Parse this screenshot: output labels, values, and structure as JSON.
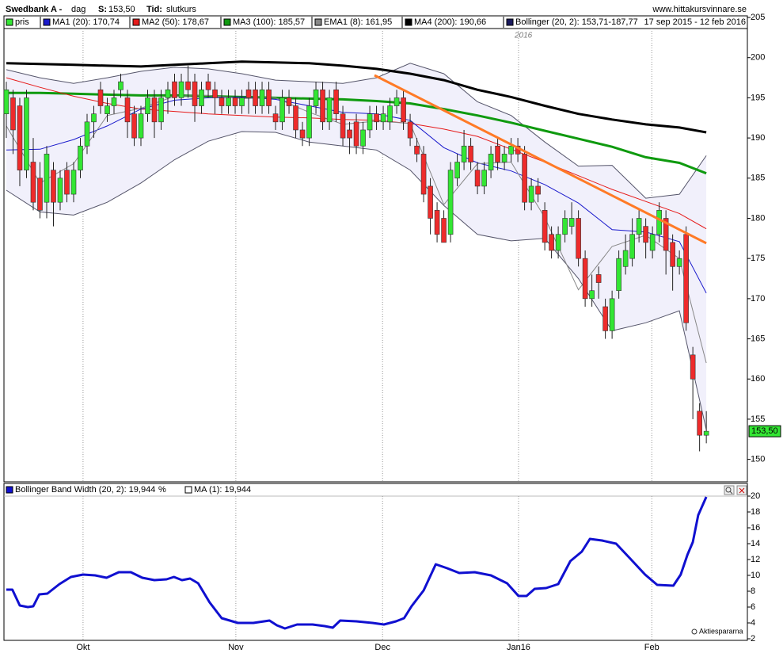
{
  "chart_data": [
    {
      "type": "candlestick",
      "title": "Swedbank A -",
      "period": "dag",
      "price_label": "S:",
      "price": "153,50",
      "time_label": "Tid:",
      "time_value": "slutkurs",
      "source": "www.hittakursvinnare.se",
      "date_range": "17 sep 2015 - 12 feb 2016",
      "annotation": "2016",
      "candles": {
        "name": "pris",
        "up_color": "#33e633",
        "down_color": "#ee2b2b",
        "ohlc": [
          [
            193,
            197,
            190,
            196
          ],
          [
            195,
            196,
            188,
            191
          ],
          [
            194,
            195,
            184,
            186
          ],
          [
            186,
            196,
            185,
            195
          ],
          [
            187,
            190,
            181,
            182
          ],
          [
            185,
            187,
            180,
            181
          ],
          [
            182,
            189,
            180,
            188
          ],
          [
            186,
            187,
            179,
            182
          ],
          [
            182,
            186,
            181,
            185
          ],
          [
            186,
            187,
            182,
            183
          ],
          [
            183,
            187,
            182,
            186
          ],
          [
            186,
            190,
            185,
            189
          ],
          [
            189,
            193,
            188,
            192
          ],
          [
            192,
            194,
            190,
            193
          ],
          [
            196,
            197,
            193,
            194
          ],
          [
            193,
            195,
            192,
            194
          ],
          [
            194,
            196,
            193,
            195
          ],
          [
            196,
            198,
            195,
            197
          ],
          [
            195,
            196,
            190,
            192
          ],
          [
            193,
            194,
            189,
            190
          ],
          [
            190,
            194,
            189,
            193
          ],
          [
            193,
            196,
            192,
            195
          ],
          [
            195,
            196,
            190,
            192
          ],
          [
            192,
            196,
            191,
            195
          ],
          [
            195,
            197,
            193,
            196
          ],
          [
            197,
            198,
            194,
            195
          ],
          [
            195,
            198,
            194,
            197
          ],
          [
            197,
            199,
            195,
            196
          ],
          [
            197,
            198,
            192,
            194
          ],
          [
            194,
            197,
            193,
            196
          ],
          [
            197,
            198,
            195,
            196
          ],
          [
            196,
            197,
            193,
            195
          ],
          [
            195,
            196,
            193,
            194
          ],
          [
            194,
            196,
            193,
            195
          ],
          [
            195,
            196,
            193,
            194
          ],
          [
            194,
            196,
            193,
            195
          ],
          [
            196,
            197,
            193,
            195
          ],
          [
            196,
            197,
            193,
            194
          ],
          [
            194,
            197,
            193,
            196
          ],
          [
            196,
            197,
            193,
            194
          ],
          [
            193,
            194,
            191,
            192
          ],
          [
            192,
            196,
            191,
            195
          ],
          [
            195,
            196,
            193,
            194
          ],
          [
            194,
            195,
            190,
            191
          ],
          [
            191,
            192,
            189,
            190
          ],
          [
            190,
            195,
            189,
            194
          ],
          [
            194,
            197,
            193,
            196
          ],
          [
            196,
            197,
            191,
            192
          ],
          [
            192,
            196,
            191,
            195
          ],
          [
            196,
            197,
            192,
            193
          ],
          [
            193,
            194,
            189,
            190
          ],
          [
            191,
            192,
            188,
            190
          ],
          [
            192,
            193,
            188,
            189
          ],
          [
            189,
            192,
            188,
            191
          ],
          [
            191,
            194,
            190,
            193
          ],
          [
            193,
            194,
            191,
            192
          ],
          [
            192,
            194,
            191,
            193
          ],
          [
            192,
            195,
            191,
            194
          ],
          [
            194,
            196,
            193,
            195
          ],
          [
            195,
            196,
            191,
            192
          ],
          [
            192,
            193,
            189,
            190
          ],
          [
            189,
            190,
            187,
            188
          ],
          [
            188,
            189,
            182,
            183
          ],
          [
            184,
            185,
            178,
            180
          ],
          [
            181,
            182,
            177,
            178
          ],
          [
            180,
            181,
            177,
            177
          ],
          [
            178,
            187,
            177,
            186
          ],
          [
            185,
            188,
            184,
            187
          ],
          [
            187,
            191,
            186,
            189
          ],
          [
            189,
            190,
            186,
            187
          ],
          [
            186,
            187,
            183,
            184
          ],
          [
            184,
            187,
            183,
            186
          ],
          [
            186,
            189,
            185,
            188
          ],
          [
            189,
            190,
            186,
            187
          ],
          [
            187,
            189,
            186,
            188
          ],
          [
            188,
            190,
            187,
            189
          ],
          [
            189,
            190,
            187,
            188
          ],
          [
            188,
            189,
            181,
            182
          ],
          [
            182,
            185,
            181,
            184
          ],
          [
            184,
            185,
            182,
            183
          ],
          [
            181,
            182,
            176,
            177
          ],
          [
            178,
            179,
            175,
            176
          ],
          [
            176,
            179,
            175,
            178
          ],
          [
            178,
            181,
            177,
            180
          ],
          [
            179,
            182,
            178,
            180
          ],
          [
            180,
            181,
            174,
            175
          ],
          [
            175,
            176,
            169,
            170
          ],
          [
            170,
            173,
            169,
            171
          ],
          [
            173,
            174,
            170,
            172
          ],
          [
            169,
            170,
            165,
            166
          ],
          [
            166,
            171,
            165,
            170
          ],
          [
            171,
            176,
            170,
            175
          ],
          [
            174,
            178,
            173,
            176
          ],
          [
            175,
            180,
            174,
            178
          ],
          [
            178,
            181,
            177,
            180
          ],
          [
            179,
            180,
            175,
            177
          ],
          [
            176,
            179,
            175,
            178
          ],
          [
            178,
            182,
            177,
            181
          ],
          [
            180,
            181,
            173,
            176
          ],
          [
            177,
            178,
            171,
            174
          ],
          [
            174,
            176,
            173,
            175
          ],
          [
            178,
            179,
            166,
            167
          ],
          [
            163,
            164,
            155,
            160
          ],
          [
            156,
            157,
            151,
            153
          ],
          [
            153,
            156,
            152,
            153.5
          ]
        ]
      },
      "line_x": [
        0,
        5,
        10,
        15,
        20,
        25,
        30,
        35,
        40,
        45,
        50,
        55,
        60,
        65,
        70,
        75,
        80,
        85,
        90,
        95,
        100,
        104
      ],
      "series": [
        {
          "name": "MA1 (20): 170,74",
          "color": "#1a1acc",
          "values": [
            188.5,
            188.6,
            189.8,
            191.5,
            193.6,
            194.7,
            195.0,
            195.1,
            194.8,
            194.0,
            193.2,
            193.0,
            192.2,
            188.8,
            186.9,
            185.9,
            184.2,
            181.9,
            178.6,
            178.3,
            177.1,
            170.7
          ]
        },
        {
          "name": "MA2 (50): 178,67",
          "color": "#e61a1a",
          "values": [
            197.5,
            196.3,
            195.2,
            194.3,
            193.6,
            193.3,
            193.0,
            192.8,
            192.6,
            192.5,
            192.3,
            192.2,
            191.8,
            191.1,
            190.2,
            188.6,
            187.0,
            185.3,
            183.6,
            182.1,
            180.6,
            178.7
          ]
        },
        {
          "name": "MA3 (100): 185,57",
          "color": "#0f9a0f",
          "values": [
            195.6,
            195.6,
            195.5,
            195.4,
            195.3,
            195.3,
            195.2,
            195.1,
            195.0,
            194.9,
            194.8,
            194.6,
            194.3,
            193.6,
            192.8,
            191.9,
            190.9,
            189.9,
            188.9,
            187.6,
            186.9,
            185.6
          ]
        },
        {
          "name": "EMA1 (8): 161,95",
          "color": "#888888",
          "values": [
            191.5,
            184.4,
            186.8,
            192.8,
            193.7,
            195.2,
            195.3,
            194.9,
            195.0,
            193.2,
            191.7,
            192.1,
            191.8,
            181.7,
            186.8,
            187.0,
            180.1,
            171.1,
            176.5,
            177.9,
            175.0,
            162.0
          ]
        },
        {
          "name": "MA4 (200): 190,66",
          "color": "#000000",
          "values": [
            199.3,
            199.2,
            199.1,
            199.0,
            198.9,
            199.1,
            199.3,
            199.5,
            199.4,
            199.3,
            199.0,
            198.6,
            198.0,
            197.2,
            196.0,
            195.1,
            194.0,
            193.0,
            192.3,
            191.7,
            191.3,
            190.7
          ]
        }
      ],
      "bollinger": {
        "name": "Bollinger (20, 2): 153,71-187,77",
        "color": "#1a1a5e",
        "line_color": "#55556a",
        "fill": "#f1f0fb",
        "upper": [
          198.5,
          197.5,
          196.8,
          197.5,
          198.3,
          198.8,
          198.6,
          198.0,
          197.2,
          197.0,
          196.8,
          197.5,
          199.3,
          198.0,
          194.5,
          192.8,
          189.5,
          186.5,
          186.6,
          182.5,
          183.0,
          187.8
        ],
        "lower": [
          183.5,
          180.8,
          180.4,
          182.0,
          184.4,
          187.3,
          189.6,
          190.8,
          190.7,
          189.5,
          189.0,
          188.5,
          186.0,
          181.6,
          178.0,
          177.2,
          177.5,
          172.5,
          166.0,
          167.0,
          168.5,
          153.7
        ]
      },
      "trendline": {
        "x": [
          54.7,
          104
        ],
        "values": [
          197.8,
          176.9
        ],
        "color": "#ff7a26"
      },
      "last": {
        "value": 153.5,
        "label": "153,50",
        "color": "#33e633"
      },
      "xlim": [
        -0.35,
        110.1
      ],
      "ylim": [
        147.2,
        205.2
      ],
      "yticks": [
        150,
        155,
        160,
        165,
        170,
        175,
        180,
        185,
        190,
        195,
        200,
        205
      ],
      "grid": true
    },
    {
      "type": "line",
      "unit": "%",
      "ma_legend": "MA (1): 19,944",
      "footer": "Aktiespararna",
      "series": [
        {
          "name": "Bollinger Band Width (20, 2): 19,944",
          "color": "#1010d0",
          "x": [
            0,
            0.9,
            2.0,
            3.2,
            4.0,
            4.9,
            6.1,
            7.9,
            9.6,
            11.4,
            13.2,
            14.9,
            16.7,
            18.5,
            20.2,
            22.0,
            23.8,
            24.9,
            26.1,
            27.3,
            28.5,
            30.2,
            32.0,
            34.4,
            36.7,
            39.1,
            40.2,
            41.4,
            43.2,
            45.5,
            47.3,
            48.5,
            49.6,
            52.0,
            54.4,
            56.1,
            57.9,
            59.1,
            60.2,
            62.0,
            63.8,
            65.5,
            67.3,
            69.6,
            72.0,
            74.4,
            76.1,
            77.3,
            78.5,
            80.2,
            82.0,
            83.8,
            85.5,
            86.7,
            88.5,
            90.6,
            92.6,
            94.9,
            96.7,
            99.1,
            100.2,
            101.2,
            102.0,
            102.8,
            104.0
          ],
          "values": [
            8.2,
            8.2,
            6.2,
            6.0,
            6.1,
            7.6,
            7.7,
            8.9,
            9.8,
            10.1,
            10.0,
            9.7,
            10.4,
            10.4,
            9.7,
            9.4,
            9.5,
            9.8,
            9.4,
            9.6,
            9.0,
            6.6,
            4.6,
            4.0,
            4.0,
            4.3,
            3.7,
            3.3,
            3.8,
            3.8,
            3.6,
            3.4,
            4.3,
            4.2,
            4.0,
            3.8,
            4.2,
            4.6,
            6.1,
            8.1,
            11.4,
            10.9,
            10.3,
            10.4,
            10.0,
            9.0,
            7.4,
            7.4,
            8.3,
            8.4,
            8.9,
            11.8,
            13.0,
            14.6,
            14.4,
            14.0,
            12.2,
            10.1,
            8.8,
            8.7,
            10.1,
            12.6,
            14.2,
            17.6,
            19.9
          ]
        }
      ],
      "xlim": [
        -0.35,
        110.1
      ],
      "xticks": [
        {
          "value": 11.4,
          "label": "Okt"
        },
        {
          "value": 34.1,
          "label": "Nov"
        },
        {
          "value": 55.9,
          "label": "Dec"
        },
        {
          "value": 76.1,
          "label": "Jan16"
        },
        {
          "value": 95.9,
          "label": "Feb"
        }
      ],
      "ylim": [
        1.8,
        21.6
      ],
      "yticks": [
        2,
        4,
        6,
        8,
        10,
        12,
        14,
        16,
        18,
        20
      ],
      "grid": true
    }
  ]
}
